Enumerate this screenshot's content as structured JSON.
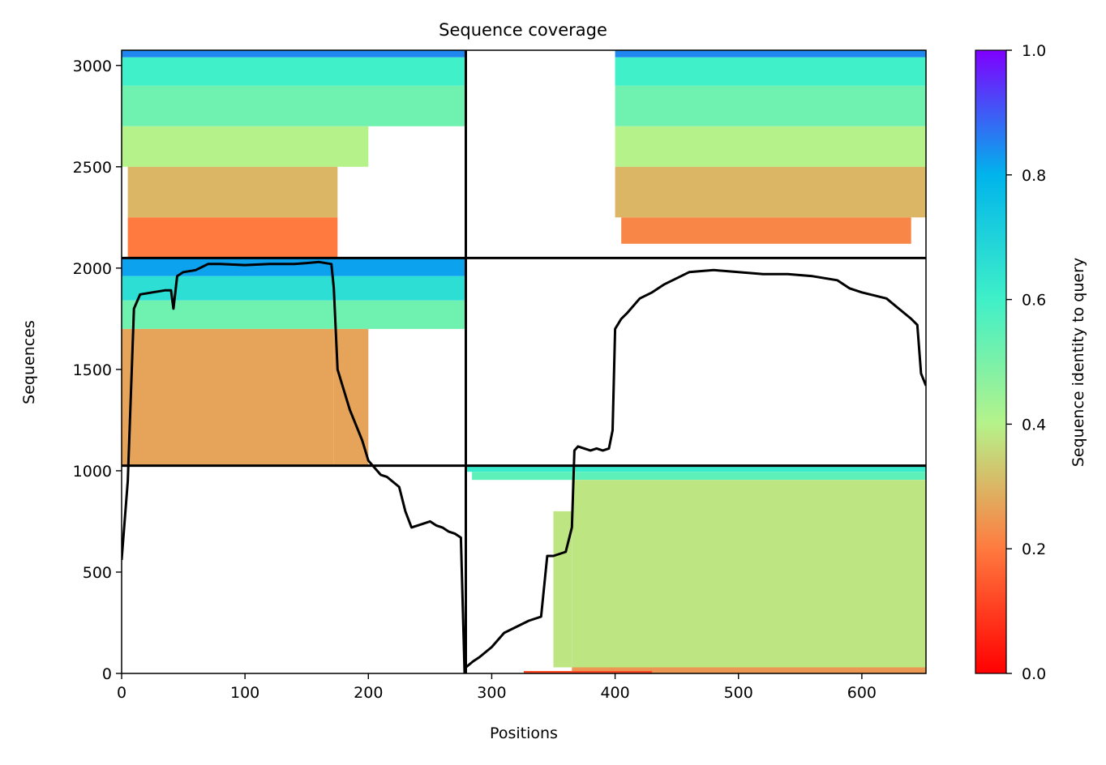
{
  "chart_data": {
    "type": "heatmap",
    "title": "Sequence coverage",
    "xlabel": "Positions",
    "ylabel": "Sequences",
    "xlim": [
      0,
      652
    ],
    "ylim": [
      0,
      3075
    ],
    "xticks": [
      0,
      100,
      200,
      300,
      400,
      500,
      600
    ],
    "yticks": [
      0,
      500,
      1000,
      1500,
      2000,
      2500,
      3000
    ],
    "grid": false,
    "colorbar": {
      "label": "Sequence identity to query",
      "colormap": "rainbow_r",
      "range": [
        0,
        1
      ],
      "ticks": [
        "0.0",
        "0.2",
        "0.4",
        "0.6",
        "0.8",
        "1.0"
      ],
      "stops": [
        "#ff0000",
        "#ff7a3f",
        "#b6f28a",
        "#3ff0c8",
        "#00b4ec",
        "#7f00ff"
      ]
    },
    "chain_boundaries": {
      "x": [
        279
      ],
      "y": [
        1025,
        2050
      ]
    },
    "blocks": [
      {
        "name": "block-bottom-right",
        "x": [
          279,
          652
        ],
        "y": [
          0,
          1025
        ],
        "strips": [
          {
            "x": [
              279,
              652
            ],
            "y": [
              995,
              1025
            ],
            "identity": 0.62
          },
          {
            "x": [
              284,
              652
            ],
            "y": [
              955,
              995
            ],
            "identity": 0.55
          },
          {
            "x": [
              365,
              652
            ],
            "y": [
              30,
              955
            ],
            "identity": 0.38
          },
          {
            "x": [
              350,
              365
            ],
            "y": [
              30,
              800
            ],
            "identity": 0.38
          },
          {
            "x": [
              365,
              652
            ],
            "y": [
              0,
              30
            ],
            "identity": 0.25
          },
          {
            "x": [
              326,
              430
            ],
            "y": [
              0,
              12
            ],
            "identity": 0.12
          }
        ]
      },
      {
        "name": "block-middle-left",
        "x": [
          0,
          279
        ],
        "y": [
          1025,
          2050
        ],
        "strips": [
          {
            "x": [
              0,
              279
            ],
            "y": [
              1960,
              2050
            ],
            "identity": 0.82
          },
          {
            "x": [
              0,
              279
            ],
            "y": [
              1840,
              1960
            ],
            "identity": 0.66
          },
          {
            "x": [
              0,
              279
            ],
            "y": [
              1700,
              1840
            ],
            "identity": 0.52
          },
          {
            "x": [
              0,
              172
            ],
            "y": [
              1025,
              1700
            ],
            "identity": 0.27
          },
          {
            "x": [
              172,
              200
            ],
            "y": [
              1025,
              1700
            ],
            "identity": 0.27
          }
        ]
      },
      {
        "name": "block-top-left",
        "x": [
          0,
          279
        ],
        "y": [
          2050,
          3075
        ],
        "strips": [
          {
            "x": [
              0,
              279
            ],
            "y": [
              3040,
              3075
            ],
            "identity": 0.85
          },
          {
            "x": [
              0,
              279
            ],
            "y": [
              2900,
              3040
            ],
            "identity": 0.6
          },
          {
            "x": [
              0,
              279
            ],
            "y": [
              2700,
              2900
            ],
            "identity": 0.52
          },
          {
            "x": [
              0,
              200
            ],
            "y": [
              2500,
              2700
            ],
            "identity": 0.4
          },
          {
            "x": [
              5,
              175
            ],
            "y": [
              2250,
              2500
            ],
            "identity": 0.3
          },
          {
            "x": [
              5,
              175
            ],
            "y": [
              2050,
              2250
            ],
            "identity": 0.2
          }
        ]
      },
      {
        "name": "block-top-right",
        "x": [
          279,
          652
        ],
        "y": [
          2050,
          3075
        ],
        "strips": [
          {
            "x": [
              400,
              652
            ],
            "y": [
              3040,
              3075
            ],
            "identity": 0.85
          },
          {
            "x": [
              400,
              652
            ],
            "y": [
              2900,
              3040
            ],
            "identity": 0.6
          },
          {
            "x": [
              400,
              652
            ],
            "y": [
              2700,
              2900
            ],
            "identity": 0.52
          },
          {
            "x": [
              400,
              652
            ],
            "y": [
              2500,
              2700
            ],
            "identity": 0.4
          },
          {
            "x": [
              400,
              652
            ],
            "y": [
              2250,
              2500
            ],
            "identity": 0.3
          },
          {
            "x": [
              405,
              640
            ],
            "y": [
              2120,
              2250
            ],
            "identity": 0.22
          }
        ]
      }
    ],
    "coverage_line": {
      "color": "#000000",
      "x": [
        0,
        5,
        10,
        15,
        25,
        35,
        40,
        42,
        45,
        50,
        60,
        70,
        80,
        100,
        120,
        140,
        150,
        160,
        170,
        172,
        175,
        180,
        185,
        195,
        200,
        210,
        215,
        225,
        230,
        235,
        240,
        245,
        250,
        255,
        260,
        265,
        270,
        275,
        278,
        279,
        285,
        290,
        300,
        310,
        320,
        330,
        340,
        345,
        350,
        355,
        360,
        365,
        367,
        370,
        380,
        385,
        390,
        395,
        398,
        400,
        405,
        410,
        420,
        430,
        440,
        450,
        460,
        480,
        500,
        520,
        540,
        560,
        580,
        590,
        600,
        620,
        630,
        640,
        645,
        648,
        652
      ],
      "y": [
        560,
        950,
        1800,
        1870,
        1880,
        1890,
        1890,
        1800,
        1960,
        1980,
        1990,
        2020,
        2020,
        2015,
        2020,
        2020,
        2025,
        2030,
        2020,
        1900,
        1500,
        1400,
        1300,
        1150,
        1050,
        980,
        970,
        920,
        800,
        720,
        730,
        740,
        750,
        730,
        720,
        700,
        690,
        670,
        0,
        30,
        60,
        80,
        130,
        200,
        230,
        260,
        280,
        580,
        580,
        590,
        600,
        720,
        1100,
        1120,
        1100,
        1110,
        1100,
        1110,
        1200,
        1700,
        1750,
        1780,
        1850,
        1880,
        1920,
        1950,
        1980,
        1990,
        1980,
        1970,
        1970,
        1960,
        1940,
        1900,
        1880,
        1850,
        1800,
        1750,
        1720,
        1480,
        1420
      ]
    }
  }
}
